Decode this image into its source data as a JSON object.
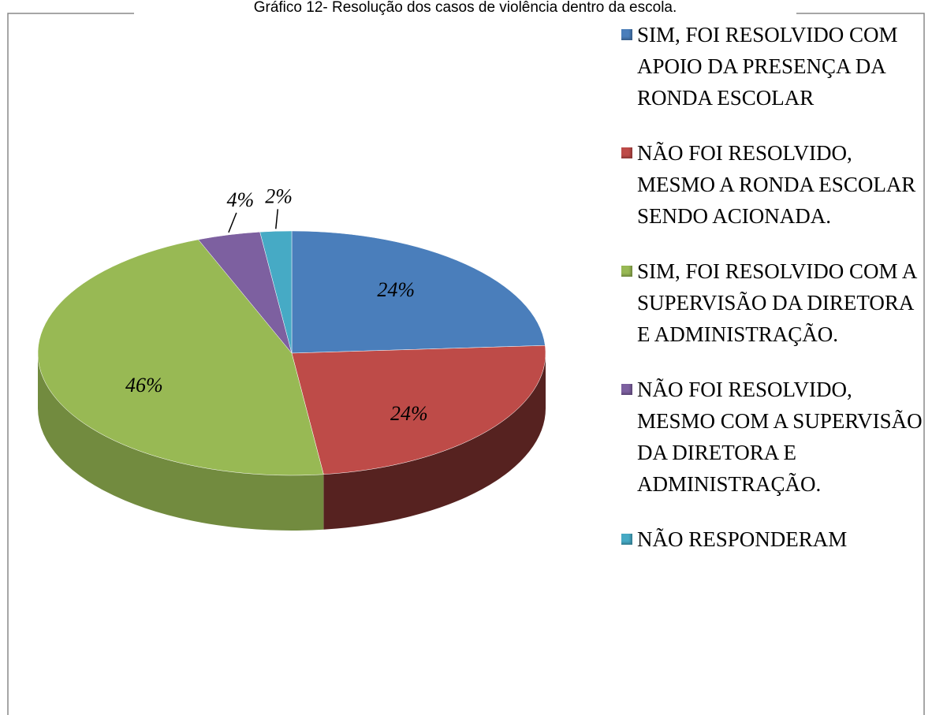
{
  "chart_data": {
    "type": "pie",
    "title": "Gráfico 12- Resolução dos casos de violência dentro da escola.",
    "categories": [
      "SIM, FOI RESOLVIDO COM APOIO DA PRESENÇA DA RONDA ESCOLAR",
      "NÃO FOI RESOLVIDO, MESMO A RONDA ESCOLAR SENDO ACIONADA.",
      "SIM, FOI RESOLVIDO COM A SUPERVISÃO DA DIRETORA E ADMINISTRAÇÃO.",
      "NÃO FOI RESOLVIDO, MESMO COM A SUPERVISÃO DA DIRETORA E ADMINISTRAÇÃO.",
      "NÃO RESPONDERAM"
    ],
    "values": [
      24,
      24,
      46,
      4,
      2
    ],
    "value_labels": [
      "24%",
      "24%",
      "46%",
      "4%",
      "2%"
    ],
    "colors": [
      "#4a7ebb",
      "#be4b48",
      "#98b954",
      "#7d60a0",
      "#46aac5"
    ],
    "legend": "right"
  }
}
